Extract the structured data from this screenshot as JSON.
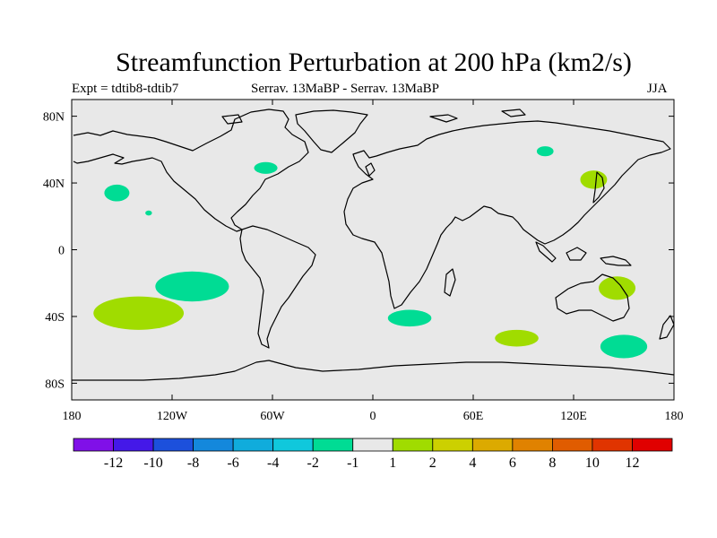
{
  "title": "Streamfunction Perturbation at 200 hPa (km2/s)",
  "subtitle_left": "Expt = tdtib8-tdtib7",
  "subtitle_center": "Serrav.   13MaBP - Serrav.   13MaBP",
  "subtitle_right": "JJA",
  "colors": {
    "ocean": "#e8e8e8",
    "land_outline": "#000000",
    "neg_1": "#00dc94",
    "pos_1": "#a0dc00"
  },
  "chart_data": {
    "type": "map",
    "title": "Streamfunction Perturbation at 200 hPa (km2/s)",
    "lon_range": [
      -180,
      180
    ],
    "lat_range": [
      -90,
      90
    ],
    "x_ticks": [
      {
        "value": -180,
        "label": "180"
      },
      {
        "value": -120,
        "label": "120W"
      },
      {
        "value": -60,
        "label": "60W"
      },
      {
        "value": 0,
        "label": "0"
      },
      {
        "value": 60,
        "label": "60E"
      },
      {
        "value": 120,
        "label": "120E"
      },
      {
        "value": 180,
        "label": "180"
      }
    ],
    "y_ticks": [
      {
        "value": 80,
        "label": "80N"
      },
      {
        "value": 40,
        "label": "40N"
      },
      {
        "value": 0,
        "label": "0"
      },
      {
        "value": -40,
        "label": "40S"
      },
      {
        "value": -80,
        "label": "80S"
      }
    ],
    "colorbar": {
      "labels": [
        "-12",
        "-10",
        "-8",
        "-6",
        "-4",
        "-2",
        "-1",
        "1",
        "2",
        "4",
        "6",
        "8",
        "10",
        "12"
      ],
      "colors": [
        "#8010e8",
        "#4418e8",
        "#1c50dc",
        "#1488dc",
        "#10acdc",
        "#10c8dc",
        "#00dc94",
        "#e8e8e8",
        "#a0dc00",
        "#ccd000",
        "#dcaa00",
        "#e08200",
        "#e05c00",
        "#e03400",
        "#e00000"
      ]
    },
    "anomalies": [
      {
        "name": "n-pacific-west",
        "sign": "negative",
        "lon": -153,
        "lat": 34,
        "rlon": 7.5,
        "rlat": 5
      },
      {
        "name": "n-pacific-dot",
        "sign": "negative",
        "lon": -134,
        "lat": 22,
        "rlon": 2,
        "rlat": 1.5
      },
      {
        "name": "n-atlantic",
        "sign": "negative",
        "lon": -64,
        "lat": 49,
        "rlon": 7,
        "rlat": 3.5
      },
      {
        "name": "siberia",
        "sign": "negative",
        "lon": 103,
        "lat": 59,
        "rlon": 5,
        "rlat": 3
      },
      {
        "name": "s-pacific",
        "sign": "negative",
        "lon": -108,
        "lat": -22,
        "rlon": 22,
        "rlat": 9
      },
      {
        "name": "s-atlantic-africa",
        "sign": "negative",
        "lon": 22,
        "lat": -41,
        "rlon": 13,
        "rlat": 5
      },
      {
        "name": "se-australia",
        "sign": "negative",
        "lon": 150,
        "lat": -58,
        "rlon": 14,
        "rlat": 7
      },
      {
        "name": "japan",
        "sign": "positive",
        "lon": 132,
        "lat": 42,
        "rlon": 8,
        "rlat": 5.5
      },
      {
        "name": "ne-australia",
        "sign": "positive",
        "lon": 146,
        "lat": -23,
        "rlon": 11,
        "rlat": 7
      },
      {
        "name": "indian-ocean",
        "sign": "positive",
        "lon": 86,
        "lat": -53,
        "rlon": 13,
        "rlat": 5
      },
      {
        "name": "s-pacific-tongue",
        "sign": "positive",
        "lon": -140,
        "lat": -38,
        "rlon": 27,
        "rlat": 10
      }
    ]
  }
}
